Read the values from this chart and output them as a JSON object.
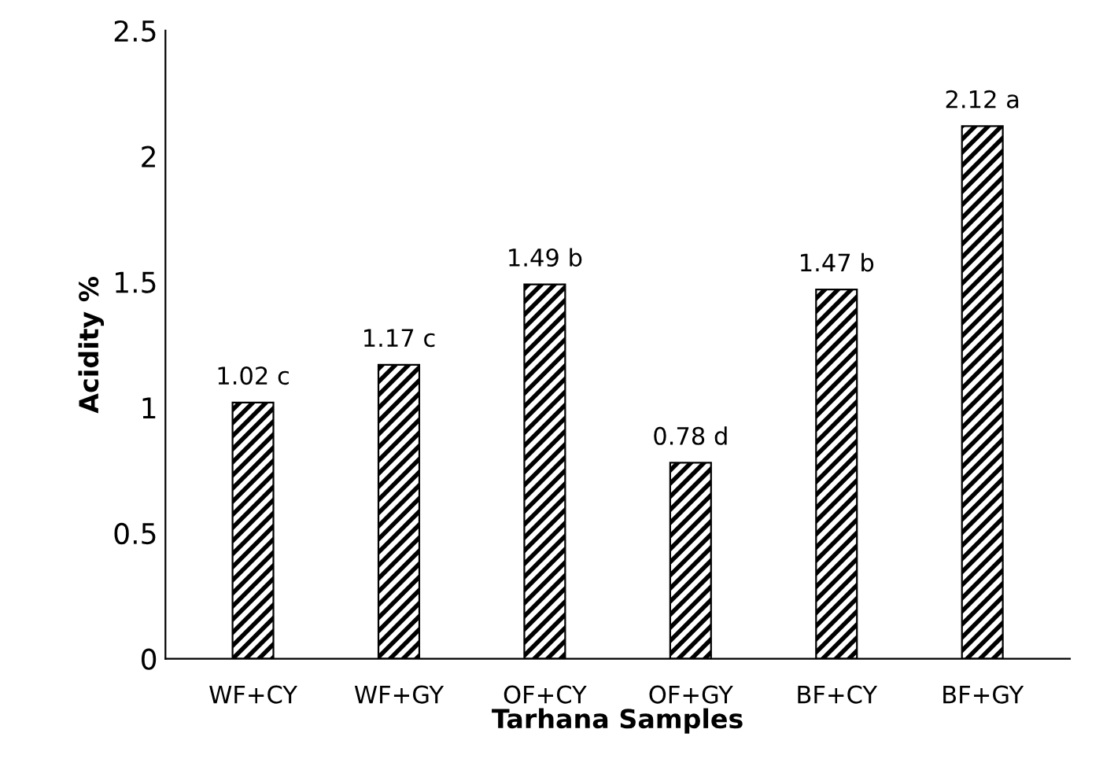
{
  "chart_data": {
    "type": "bar",
    "xlabel": "Tarhana Samples",
    "ylabel": "Acidity %",
    "categories": [
      "WF+CY",
      "WF+GY",
      "OF+CY",
      "OF+GY",
      "BF+CY",
      "BF+GY"
    ],
    "values": [
      1.02,
      1.17,
      1.49,
      0.78,
      1.47,
      2.12
    ],
    "value_labels": [
      "1.02 c",
      "1.17 c",
      "1.49 b",
      "0.78 d",
      "1.47 b",
      "2.12 a"
    ],
    "color": "#000000",
    "ylim": [
      0,
      2.5
    ],
    "yticks": [
      0,
      0.5,
      1,
      1.5,
      2,
      2.5
    ],
    "grid": false,
    "legend": false
  }
}
